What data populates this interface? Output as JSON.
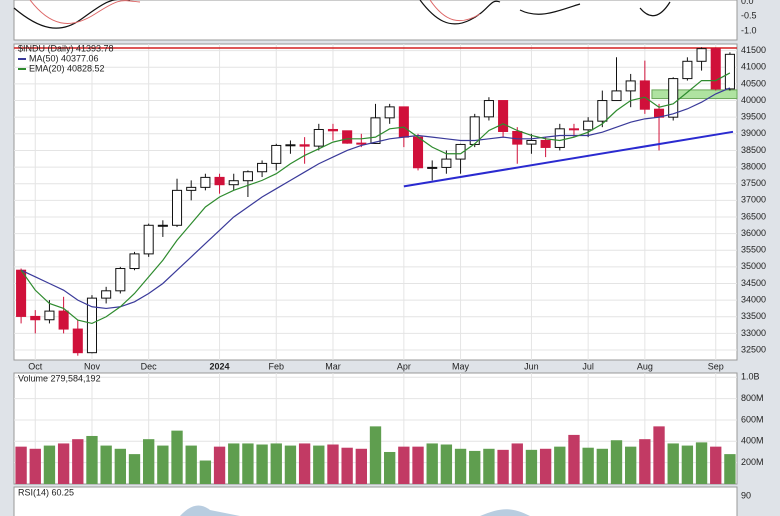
{
  "chart_data": {
    "type": "candlestick",
    "title": "$INDU (Daily) 41393.78",
    "categories": [
      null,
      "Oct",
      null,
      null,
      null,
      "Nov",
      null,
      null,
      null,
      "Dec",
      null,
      null,
      null,
      null,
      "2024",
      null,
      null,
      null,
      "Feb",
      null,
      null,
      null,
      "Mar",
      null,
      null,
      null,
      null,
      "Apr",
      null,
      null,
      null,
      "May",
      null,
      null,
      null,
      null,
      "Jun",
      null,
      null,
      null,
      "Jul",
      null,
      null,
      null,
      "Aug",
      null,
      null,
      null,
      null,
      "Sep",
      null
    ],
    "open": [
      34900,
      33510,
      33410,
      33670,
      33130,
      32420,
      34060,
      34280,
      34950,
      35390,
      36250,
      36250,
      37300,
      37390,
      37690,
      37470,
      37590,
      37860,
      38110,
      38650,
      38670,
      38630,
      39130,
      39090,
      38720,
      38710,
      39480,
      39810,
      38900,
      37980,
      37990,
      38240,
      38680,
      39510,
      40000,
      39070,
      38690,
      38800,
      38590,
      39150,
      39120,
      39380,
      40000,
      40290,
      40590,
      39740,
      39500,
      40660,
      41180,
      41560,
      40350
    ],
    "high": [
      34950,
      33700,
      34000,
      34100,
      33400,
      34150,
      34400,
      35000,
      35450,
      36300,
      36400,
      37650,
      37600,
      37800,
      37800,
      37800,
      37900,
      38200,
      38700,
      38800,
      38900,
      39300,
      39300,
      39100,
      39000,
      39900,
      39900,
      39800,
      39000,
      38200,
      38500,
      38700,
      39600,
      40100,
      40000,
      39200,
      39000,
      38900,
      39300,
      39300,
      39500,
      40300,
      41300,
      40800,
      41200,
      39900,
      40700,
      41300,
      41600,
      41600,
      41450
    ],
    "low": [
      33300,
      33000,
      33300,
      33000,
      32330,
      32400,
      33900,
      34200,
      34900,
      35300,
      35900,
      36200,
      37000,
      37300,
      37200,
      37300,
      37100,
      37700,
      37900,
      38400,
      38100,
      38500,
      38800,
      38700,
      38600,
      38700,
      39300,
      38600,
      37900,
      37600,
      37800,
      37800,
      38600,
      39400,
      38900,
      38100,
      38400,
      38300,
      38500,
      38900,
      38900,
      39200,
      40000,
      39800,
      39600,
      38500,
      39400,
      40600,
      40900,
      40300,
      40300
    ],
    "close": [
      33510,
      33410,
      33670,
      33130,
      32420,
      34060,
      34280,
      34950,
      35390,
      36250,
      36250,
      37300,
      37390,
      37690,
      37470,
      37590,
      37860,
      38110,
      38650,
      38670,
      38630,
      39130,
      39090,
      38720,
      38710,
      39480,
      39810,
      38900,
      37980,
      37990,
      38240,
      38680,
      39510,
      40000,
      39070,
      38690,
      38800,
      38590,
      39150,
      39120,
      39380,
      40000,
      40290,
      40590,
      39740,
      39500,
      40660,
      41180,
      41560,
      40350,
      41390
    ],
    "up_color": "#ffffff",
    "down_color": "#d0103a",
    "series": [
      {
        "name": "MA(50) 40377.06",
        "color": "#3a3a9a",
        "values": [
          34900,
          34700,
          34500,
          34300,
          34000,
          33800,
          33750,
          33800,
          33950,
          34200,
          34500,
          34900,
          35300,
          35700,
          36100,
          36500,
          36800,
          37100,
          37350,
          37600,
          37850,
          38100,
          38300,
          38500,
          38650,
          38750,
          38850,
          38900,
          38950,
          38900,
          38850,
          38800,
          38800,
          38850,
          38900,
          38850,
          38850,
          38900,
          38950,
          38950,
          38950,
          39050,
          39200,
          39350,
          39450,
          39500,
          39600,
          39750,
          39950,
          40200,
          40380
        ]
      },
      {
        "name": "EMA(20) 40828.52",
        "color": "#2e8b2e",
        "values": [
          34900,
          34300,
          33900,
          33750,
          33400,
          33300,
          33500,
          33800,
          34200,
          34700,
          35200,
          35800,
          36300,
          36800,
          37100,
          37300,
          37450,
          37600,
          37800,
          38100,
          38350,
          38550,
          38750,
          38850,
          38850,
          38900,
          39150,
          39200,
          38900,
          38600,
          38400,
          38400,
          38700,
          39100,
          39300,
          39100,
          38950,
          38850,
          38800,
          38900,
          39050,
          39300,
          39700,
          40000,
          40100,
          39800,
          39900,
          40250,
          40600,
          40600,
          40830
        ]
      }
    ],
    "ylim": [
      32200,
      41700
    ],
    "yticks": [
      32500,
      33000,
      33500,
      34000,
      34500,
      35000,
      35500,
      36000,
      36500,
      37000,
      37500,
      38000,
      38500,
      39000,
      39500,
      40000,
      40500,
      41000,
      41500
    ],
    "grid": true,
    "resistance": {
      "value": 41580,
      "color": "#d42020"
    },
    "trendline": {
      "start": {
        "index": 28,
        "value": 37420
      },
      "end": {
        "index": 50,
        "value": 39060
      },
      "color": "#2a2ad0"
    },
    "support_zone": {
      "start_index": 45,
      "low": 40060,
      "high": 40320,
      "color": "#9bdc8a"
    },
    "volume": {
      "label": "Volume 279,584,192",
      "values": [
        350000000,
        330000000,
        360000000,
        380000000,
        420000000,
        450000000,
        360000000,
        330000000,
        280000000,
        420000000,
        360000000,
        500000000,
        360000000,
        220000000,
        350000000,
        380000000,
        380000000,
        370000000,
        380000000,
        360000000,
        380000000,
        360000000,
        370000000,
        340000000,
        330000000,
        540000000,
        300000000,
        350000000,
        350000000,
        380000000,
        370000000,
        330000000,
        310000000,
        330000000,
        320000000,
        380000000,
        320000000,
        330000000,
        350000000,
        460000000,
        340000000,
        330000000,
        410000000,
        350000000,
        420000000,
        540000000,
        380000000,
        360000000,
        390000000,
        350000000,
        280000000
      ],
      "up_color": "#5f9e4f",
      "down_color": "#c23a64",
      "ylim": [
        0,
        1040000000
      ],
      "yticks": [
        {
          "value": 200000000,
          "label": "200M"
        },
        {
          "value": 400000000,
          "label": "400M"
        },
        {
          "value": 600000000,
          "label": "600M"
        },
        {
          "value": 800000000,
          "label": "800M"
        },
        {
          "value": 1000000000,
          "label": "1.0B"
        }
      ]
    },
    "top_panel": {
      "ylim": [
        -1.3,
        0.05
      ],
      "yticks": [
        {
          "value": 0,
          "label": "0.0"
        },
        {
          "value": -0.5,
          "label": "-0.5"
        },
        {
          "value": -1,
          "label": "-1.0"
        }
      ]
    },
    "rsi_panel": {
      "label": "RSI(14) 60.25",
      "ylim": [
        55,
        100
      ],
      "yticks": [
        90
      ]
    }
  }
}
